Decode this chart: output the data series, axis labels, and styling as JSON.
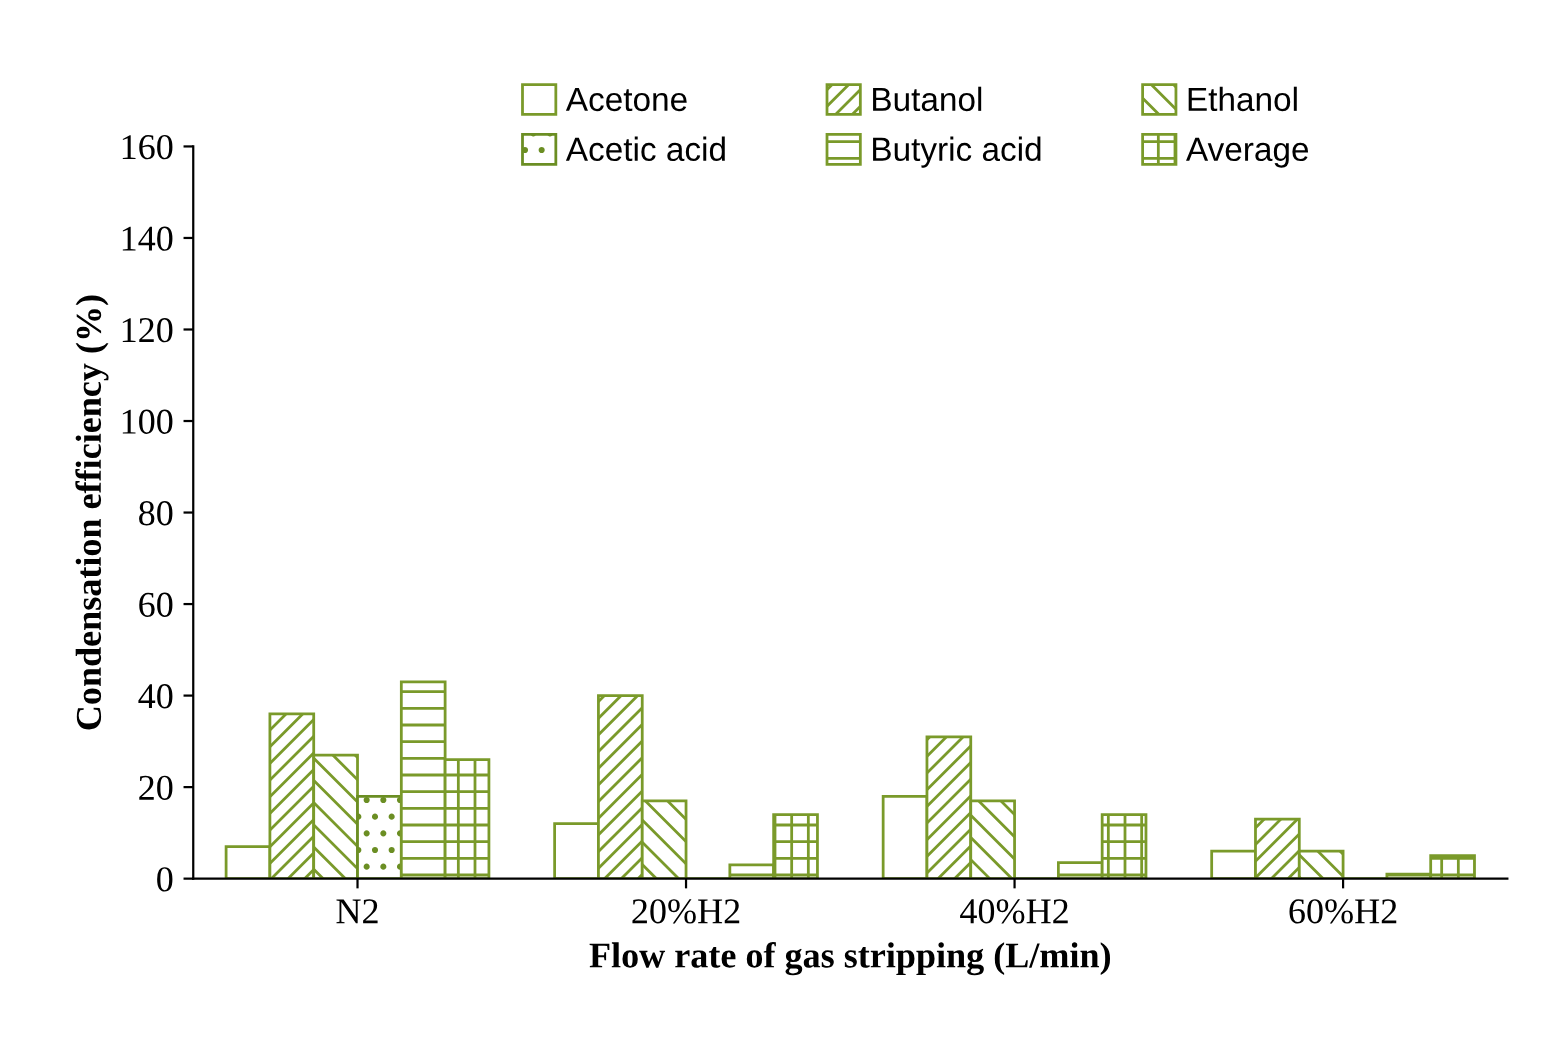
{
  "chart_data": {
    "type": "bar",
    "xlabel": "Flow rate of gas stripping (L/min)",
    "ylabel": "Condensation efficiency (%)",
    "categories": [
      "N2",
      "20%H2",
      "40%H2",
      "60%H2"
    ],
    "series": [
      {
        "name": "Acetone",
        "color": "#ffffff",
        "values": [
          7,
          12,
          18,
          6
        ]
      },
      {
        "name": "Butanol",
        "color": "#7a9a2a",
        "values": [
          36,
          40,
          31,
          13
        ]
      },
      {
        "name": "Ethanol",
        "color": "#7a9a2a",
        "values": [
          27,
          17,
          17,
          6
        ]
      },
      {
        "name": "Acetic acid",
        "color": "#6b8e23",
        "values": [
          18,
          0,
          0,
          0
        ]
      },
      {
        "name": "Butyric acid",
        "color": "#7a9a2a",
        "values": [
          43,
          3,
          3.5,
          1
        ]
      },
      {
        "name": "Average",
        "color": "#7a9a2a",
        "values": [
          26,
          14,
          14,
          5
        ]
      }
    ],
    "ylim": [
      0,
      160
    ],
    "yticks": [
      0,
      20,
      40,
      60,
      80,
      100,
      120,
      140,
      160
    ],
    "grid": false,
    "legend": "top"
  }
}
